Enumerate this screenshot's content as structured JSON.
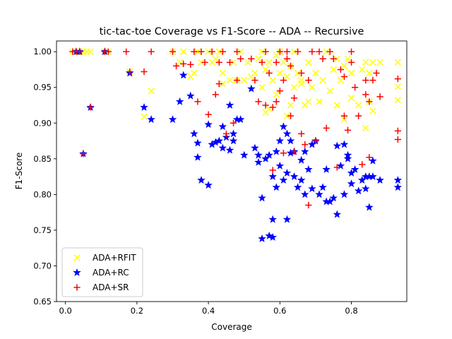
{
  "chart_data": {
    "type": "scatter",
    "title": "tic-tac-toe Coverage vs F1-Score -- ADA -- Recursive",
    "xlabel": "Coverage",
    "ylabel": "F1-Score",
    "xlim": [
      -0.025,
      0.955
    ],
    "ylim": [
      0.65,
      1.015
    ],
    "xticks": [
      "0.0",
      "0.2",
      "0.4",
      "0.6",
      "0.8"
    ],
    "yticks": [
      "0.65",
      "0.70",
      "0.75",
      "0.80",
      "0.85",
      "0.90",
      "0.95",
      "1.00"
    ],
    "legend_position": "lower-left",
    "grid": false,
    "series": [
      {
        "name": "ADA+RFIT",
        "marker": "x",
        "color": "#ffff00",
        "points": [
          [
            0.02,
            1.0
          ],
          [
            0.03,
            1.0
          ],
          [
            0.04,
            1.0
          ],
          [
            0.05,
            1.0
          ],
          [
            0.06,
            1.0
          ],
          [
            0.07,
            1.0
          ],
          [
            0.11,
            1.0
          ],
          [
            0.12,
            1.0
          ],
          [
            0.18,
            0.972
          ],
          [
            0.22,
            0.909
          ],
          [
            0.24,
            0.945
          ],
          [
            0.3,
            1.0
          ],
          [
            0.32,
            0.985
          ],
          [
            0.33,
            1.0
          ],
          [
            0.35,
            0.965
          ],
          [
            0.36,
            0.97
          ],
          [
            0.37,
            1.0
          ],
          [
            0.38,
            0.985
          ],
          [
            0.4,
            1.0
          ],
          [
            0.41,
            0.985
          ],
          [
            0.42,
            0.99
          ],
          [
            0.43,
            1.0
          ],
          [
            0.44,
            0.97
          ],
          [
            0.44,
            0.955
          ],
          [
            0.46,
            0.96
          ],
          [
            0.47,
            0.985
          ],
          [
            0.48,
            0.96
          ],
          [
            0.49,
            1.0
          ],
          [
            0.5,
            0.96
          ],
          [
            0.51,
            0.985
          ],
          [
            0.52,
            0.965
          ],
          [
            0.53,
            0.97
          ],
          [
            0.54,
            0.99
          ],
          [
            0.55,
            0.95
          ],
          [
            0.55,
            1.0
          ],
          [
            0.56,
            0.915
          ],
          [
            0.56,
            0.975
          ],
          [
            0.57,
            0.985
          ],
          [
            0.58,
            0.96
          ],
          [
            0.59,
            0.995
          ],
          [
            0.59,
            0.94
          ],
          [
            0.6,
            0.97
          ],
          [
            0.6,
            1.0
          ],
          [
            0.61,
            0.985
          ],
          [
            0.62,
            0.91
          ],
          [
            0.62,
            0.965
          ],
          [
            0.63,
            0.98
          ],
          [
            0.63,
            0.925
          ],
          [
            0.64,
            1.0
          ],
          [
            0.64,
            0.95
          ],
          [
            0.65,
            0.97
          ],
          [
            0.66,
            0.96
          ],
          [
            0.67,
            0.925
          ],
          [
            0.68,
            0.93
          ],
          [
            0.68,
            0.985
          ],
          [
            0.69,
            0.95
          ],
          [
            0.7,
            0.97
          ],
          [
            0.71,
            0.93
          ],
          [
            0.72,
            0.96
          ],
          [
            0.73,
            1.0
          ],
          [
            0.74,
            0.945
          ],
          [
            0.75,
            0.975
          ],
          [
            0.76,
            0.99
          ],
          [
            0.76,
            0.925
          ],
          [
            0.77,
            0.96
          ],
          [
            0.78,
            0.98
          ],
          [
            0.78,
            0.905
          ],
          [
            0.79,
            0.99
          ],
          [
            0.8,
            0.97
          ],
          [
            0.8,
            0.935
          ],
          [
            0.82,
            0.925
          ],
          [
            0.83,
            0.975
          ],
          [
            0.84,
            0.985
          ],
          [
            0.85,
            0.93
          ],
          [
            0.85,
            0.97
          ],
          [
            0.86,
            0.985
          ],
          [
            0.86,
            0.917
          ],
          [
            0.88,
            0.985
          ],
          [
            0.93,
            0.985
          ],
          [
            0.93,
            0.951
          ],
          [
            0.93,
            0.932
          ],
          [
            0.84,
            0.893
          ],
          [
            0.66,
            0.955
          ],
          [
            0.57,
            0.92
          ]
        ]
      },
      {
        "name": "ADA+RC",
        "marker": "*",
        "color": "#0000ff",
        "points": [
          [
            0.03,
            1.0
          ],
          [
            0.04,
            1.0
          ],
          [
            0.05,
            0.857
          ],
          [
            0.07,
            0.922
          ],
          [
            0.11,
            1.0
          ],
          [
            0.18,
            0.97
          ],
          [
            0.22,
            0.922
          ],
          [
            0.24,
            0.905
          ],
          [
            0.3,
            0.905
          ],
          [
            0.32,
            0.93
          ],
          [
            0.33,
            0.967
          ],
          [
            0.35,
            0.938
          ],
          [
            0.36,
            0.885
          ],
          [
            0.37,
            0.872
          ],
          [
            0.37,
            0.852
          ],
          [
            0.38,
            0.82
          ],
          [
            0.4,
            0.813
          ],
          [
            0.4,
            0.898
          ],
          [
            0.41,
            0.87
          ],
          [
            0.42,
            0.873
          ],
          [
            0.43,
            0.875
          ],
          [
            0.44,
            0.895
          ],
          [
            0.44,
            0.865
          ],
          [
            0.45,
            0.88
          ],
          [
            0.46,
            0.925
          ],
          [
            0.46,
            0.862
          ],
          [
            0.47,
            0.885
          ],
          [
            0.47,
            0.875
          ],
          [
            0.48,
            0.905
          ],
          [
            0.49,
            0.905
          ],
          [
            0.5,
            0.855
          ],
          [
            0.52,
            0.948
          ],
          [
            0.53,
            0.865
          ],
          [
            0.54,
            0.855
          ],
          [
            0.54,
            0.845
          ],
          [
            0.55,
            0.738
          ],
          [
            0.55,
            0.795
          ],
          [
            0.56,
            0.85
          ],
          [
            0.57,
            0.855
          ],
          [
            0.58,
            0.765
          ],
          [
            0.58,
            0.825
          ],
          [
            0.59,
            0.86
          ],
          [
            0.59,
            0.81
          ],
          [
            0.6,
            0.84
          ],
          [
            0.6,
            0.875
          ],
          [
            0.61,
            0.895
          ],
          [
            0.61,
            0.82
          ],
          [
            0.62,
            0.885
          ],
          [
            0.62,
            0.83
          ],
          [
            0.63,
            0.858
          ],
          [
            0.63,
            0.875
          ],
          [
            0.64,
            0.86
          ],
          [
            0.64,
            0.825
          ],
          [
            0.65,
            0.81
          ],
          [
            0.66,
            0.82
          ],
          [
            0.66,
            0.848
          ],
          [
            0.67,
            0.86
          ],
          [
            0.67,
            0.8
          ],
          [
            0.68,
            0.835
          ],
          [
            0.69,
            0.87
          ],
          [
            0.69,
            0.808
          ],
          [
            0.7,
            0.875
          ],
          [
            0.71,
            0.8
          ],
          [
            0.72,
            0.81
          ],
          [
            0.73,
            0.835
          ],
          [
            0.73,
            0.79
          ],
          [
            0.74,
            0.79
          ],
          [
            0.75,
            0.795
          ],
          [
            0.76,
            0.772
          ],
          [
            0.76,
            0.868
          ],
          [
            0.77,
            0.84
          ],
          [
            0.78,
            0.87
          ],
          [
            0.78,
            0.8
          ],
          [
            0.79,
            0.855
          ],
          [
            0.79,
            0.85
          ],
          [
            0.8,
            0.83
          ],
          [
            0.8,
            0.815
          ],
          [
            0.81,
            0.835
          ],
          [
            0.82,
            0.805
          ],
          [
            0.83,
            0.82
          ],
          [
            0.84,
            0.825
          ],
          [
            0.84,
            0.808
          ],
          [
            0.85,
            0.825
          ],
          [
            0.85,
            0.782
          ],
          [
            0.86,
            0.825
          ],
          [
            0.86,
            0.847
          ],
          [
            0.88,
            0.82
          ],
          [
            0.93,
            0.82
          ],
          [
            0.93,
            0.81
          ],
          [
            0.57,
            0.742
          ],
          [
            0.62,
            0.765
          ],
          [
            0.58,
            0.74
          ]
        ]
      },
      {
        "name": "ADA+SR",
        "marker": "+",
        "color": "#ff0000",
        "points": [
          [
            0.02,
            1.0
          ],
          [
            0.03,
            1.0
          ],
          [
            0.04,
            1.0
          ],
          [
            0.05,
            0.857
          ],
          [
            0.07,
            0.922
          ],
          [
            0.11,
            1.0
          ],
          [
            0.12,
            1.0
          ],
          [
            0.17,
            1.0
          ],
          [
            0.18,
            0.972
          ],
          [
            0.22,
            0.972
          ],
          [
            0.24,
            1.0
          ],
          [
            0.3,
            1.0
          ],
          [
            0.31,
            0.98
          ],
          [
            0.33,
            0.983
          ],
          [
            0.35,
            0.982
          ],
          [
            0.36,
            1.0
          ],
          [
            0.37,
            0.93
          ],
          [
            0.38,
            1.0
          ],
          [
            0.39,
            0.985
          ],
          [
            0.4,
            0.912
          ],
          [
            0.41,
            1.0
          ],
          [
            0.42,
            0.94
          ],
          [
            0.43,
            0.985
          ],
          [
            0.43,
            0.955
          ],
          [
            0.44,
            1.0
          ],
          [
            0.45,
            0.885
          ],
          [
            0.46,
            0.985
          ],
          [
            0.47,
            0.9
          ],
          [
            0.48,
            0.96
          ],
          [
            0.48,
            1.0
          ],
          [
            0.49,
            0.99
          ],
          [
            0.52,
            0.99
          ],
          [
            0.53,
            0.96
          ],
          [
            0.54,
            0.93
          ],
          [
            0.55,
            0.985
          ],
          [
            0.56,
            0.925
          ],
          [
            0.56,
            1.0
          ],
          [
            0.57,
            0.97
          ],
          [
            0.58,
            0.922
          ],
          [
            0.58,
            0.834
          ],
          [
            0.59,
            0.985
          ],
          [
            0.59,
            0.93
          ],
          [
            0.6,
            1.0
          ],
          [
            0.6,
            0.945
          ],
          [
            0.61,
            0.96
          ],
          [
            0.61,
            0.858
          ],
          [
            0.62,
            0.99
          ],
          [
            0.62,
            1.0
          ],
          [
            0.63,
            0.98
          ],
          [
            0.63,
            0.91
          ],
          [
            0.64,
            0.935
          ],
          [
            0.64,
            0.86
          ],
          [
            0.65,
            1.0
          ],
          [
            0.66,
            0.97
          ],
          [
            0.66,
            0.885
          ],
          [
            0.67,
            0.87
          ],
          [
            0.68,
            0.785
          ],
          [
            0.68,
            0.96
          ],
          [
            0.69,
            1.0
          ],
          [
            0.7,
            0.875
          ],
          [
            0.71,
            1.0
          ],
          [
            0.72,
            0.99
          ],
          [
            0.73,
            0.893
          ],
          [
            0.74,
            1.0
          ],
          [
            0.75,
            0.99
          ],
          [
            0.76,
            0.838
          ],
          [
            0.77,
            0.975
          ],
          [
            0.78,
            0.91
          ],
          [
            0.78,
            0.965
          ],
          [
            0.79,
            0.89
          ],
          [
            0.8,
            0.985
          ],
          [
            0.8,
            1.0
          ],
          [
            0.81,
            0.95
          ],
          [
            0.82,
            0.91
          ],
          [
            0.83,
            0.842
          ],
          [
            0.84,
            0.94
          ],
          [
            0.84,
            0.96
          ],
          [
            0.85,
            0.852
          ],
          [
            0.85,
            0.93
          ],
          [
            0.86,
            0.96
          ],
          [
            0.87,
            0.97
          ],
          [
            0.88,
            0.937
          ],
          [
            0.93,
            0.962
          ],
          [
            0.93,
            0.889
          ],
          [
            0.93,
            0.877
          ]
        ]
      }
    ]
  }
}
